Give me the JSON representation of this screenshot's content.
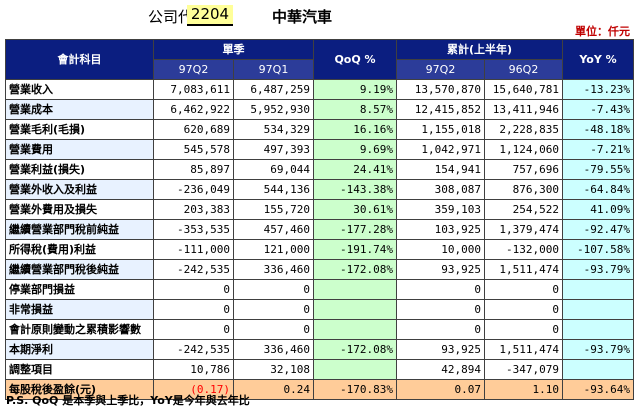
{
  "header": {
    "company_code_label": "公司代號",
    "company_code": "2204",
    "company_name": "中華汽車",
    "unit": "單位：仟元"
  },
  "table": {
    "col_subject": "會計科目",
    "group_quarter": "單季",
    "group_cumulative": "累計(上半年)",
    "col_qoq": "QoQ %",
    "col_yoy": "YoY %",
    "sub_q_cur": "97Q2",
    "sub_q_prev": "97Q1",
    "sub_c_cur": "97Q2",
    "sub_c_prev": "96Q2",
    "rows": [
      {
        "label": "營業收入",
        "q_cur": "7,083,611",
        "q_prev": "6,487,259",
        "qoq": "9.19%",
        "c_cur": "13,570,870",
        "c_prev": "15,640,781",
        "yoy": "-13.23%"
      },
      {
        "label": "營業成本",
        "q_cur": "6,462,922",
        "q_prev": "5,952,930",
        "qoq": "8.57%",
        "c_cur": "12,415,852",
        "c_prev": "13,411,946",
        "yoy": "-7.43%"
      },
      {
        "label": "營業毛利(毛損)",
        "q_cur": "620,689",
        "q_prev": "534,329",
        "qoq": "16.16%",
        "c_cur": "1,155,018",
        "c_prev": "2,228,835",
        "yoy": "-48.18%"
      },
      {
        "label": "營業費用",
        "q_cur": "545,578",
        "q_prev": "497,393",
        "qoq": "9.69%",
        "c_cur": "1,042,971",
        "c_prev": "1,124,060",
        "yoy": "-7.21%"
      },
      {
        "label": "營業利益(損失)",
        "q_cur": "85,897",
        "q_prev": "69,044",
        "qoq": "24.41%",
        "c_cur": "154,941",
        "c_prev": "757,696",
        "yoy": "-79.55%"
      },
      {
        "label": "營業外收入及利益",
        "q_cur": "-236,049",
        "q_prev": "544,136",
        "qoq": "-143.38%",
        "c_cur": "308,087",
        "c_prev": "876,300",
        "yoy": "-64.84%"
      },
      {
        "label": "營業外費用及損失",
        "q_cur": "203,383",
        "q_prev": "155,720",
        "qoq": "30.61%",
        "c_cur": "359,103",
        "c_prev": "254,522",
        "yoy": "41.09%"
      },
      {
        "label": "繼續營業部門稅前純益",
        "q_cur": "-353,535",
        "q_prev": "457,460",
        "qoq": "-177.28%",
        "c_cur": "103,925",
        "c_prev": "1,379,474",
        "yoy": "-92.47%"
      },
      {
        "label": "所得稅(費用)利益",
        "q_cur": "-111,000",
        "q_prev": "121,000",
        "qoq": "-191.74%",
        "c_cur": "10,000",
        "c_prev": "-132,000",
        "yoy": "-107.58%"
      },
      {
        "label": "繼續營業部門稅後純益",
        "q_cur": "-242,535",
        "q_prev": "336,460",
        "qoq": "-172.08%",
        "c_cur": "93,925",
        "c_prev": "1,511,474",
        "yoy": "-93.79%"
      },
      {
        "label": "停業部門損益",
        "q_cur": "0",
        "q_prev": "0",
        "qoq": "",
        "c_cur": "0",
        "c_prev": "0",
        "yoy": ""
      },
      {
        "label": "非常損益",
        "q_cur": "0",
        "q_prev": "0",
        "qoq": "",
        "c_cur": "0",
        "c_prev": "0",
        "yoy": ""
      },
      {
        "label": "會計原則變動之累積影響數",
        "q_cur": "0",
        "q_prev": "0",
        "qoq": "",
        "c_cur": "0",
        "c_prev": "0",
        "yoy": ""
      },
      {
        "label": "本期淨利",
        "q_cur": "-242,535",
        "q_prev": "336,460",
        "qoq": "-172.08%",
        "c_cur": "93,925",
        "c_prev": "1,511,474",
        "yoy": "-93.79%"
      },
      {
        "label": "調整項目",
        "q_cur": "10,786",
        "q_prev": "32,108",
        "qoq": "",
        "c_cur": "42,894",
        "c_prev": "-347,079",
        "yoy": ""
      }
    ],
    "eps": {
      "label": "每股稅後盈餘(元)",
      "q_cur": "(0.17)",
      "q_prev": "0.24",
      "qoq": "-170.83%",
      "c_cur": "0.07",
      "c_prev": "1.10",
      "yoy": "-93.64%"
    }
  },
  "footnote": "P.S. QoQ 是本季與上季比，YoY是今年與去年比",
  "colors": {
    "header_bg": "#0b1e80",
    "qoq_bg": "#ccffcc",
    "yoy_bg": "#ccffff",
    "eps_bg": "#ffcc99",
    "negative_red": "#ff0000",
    "code_bg": "#ffff99"
  }
}
